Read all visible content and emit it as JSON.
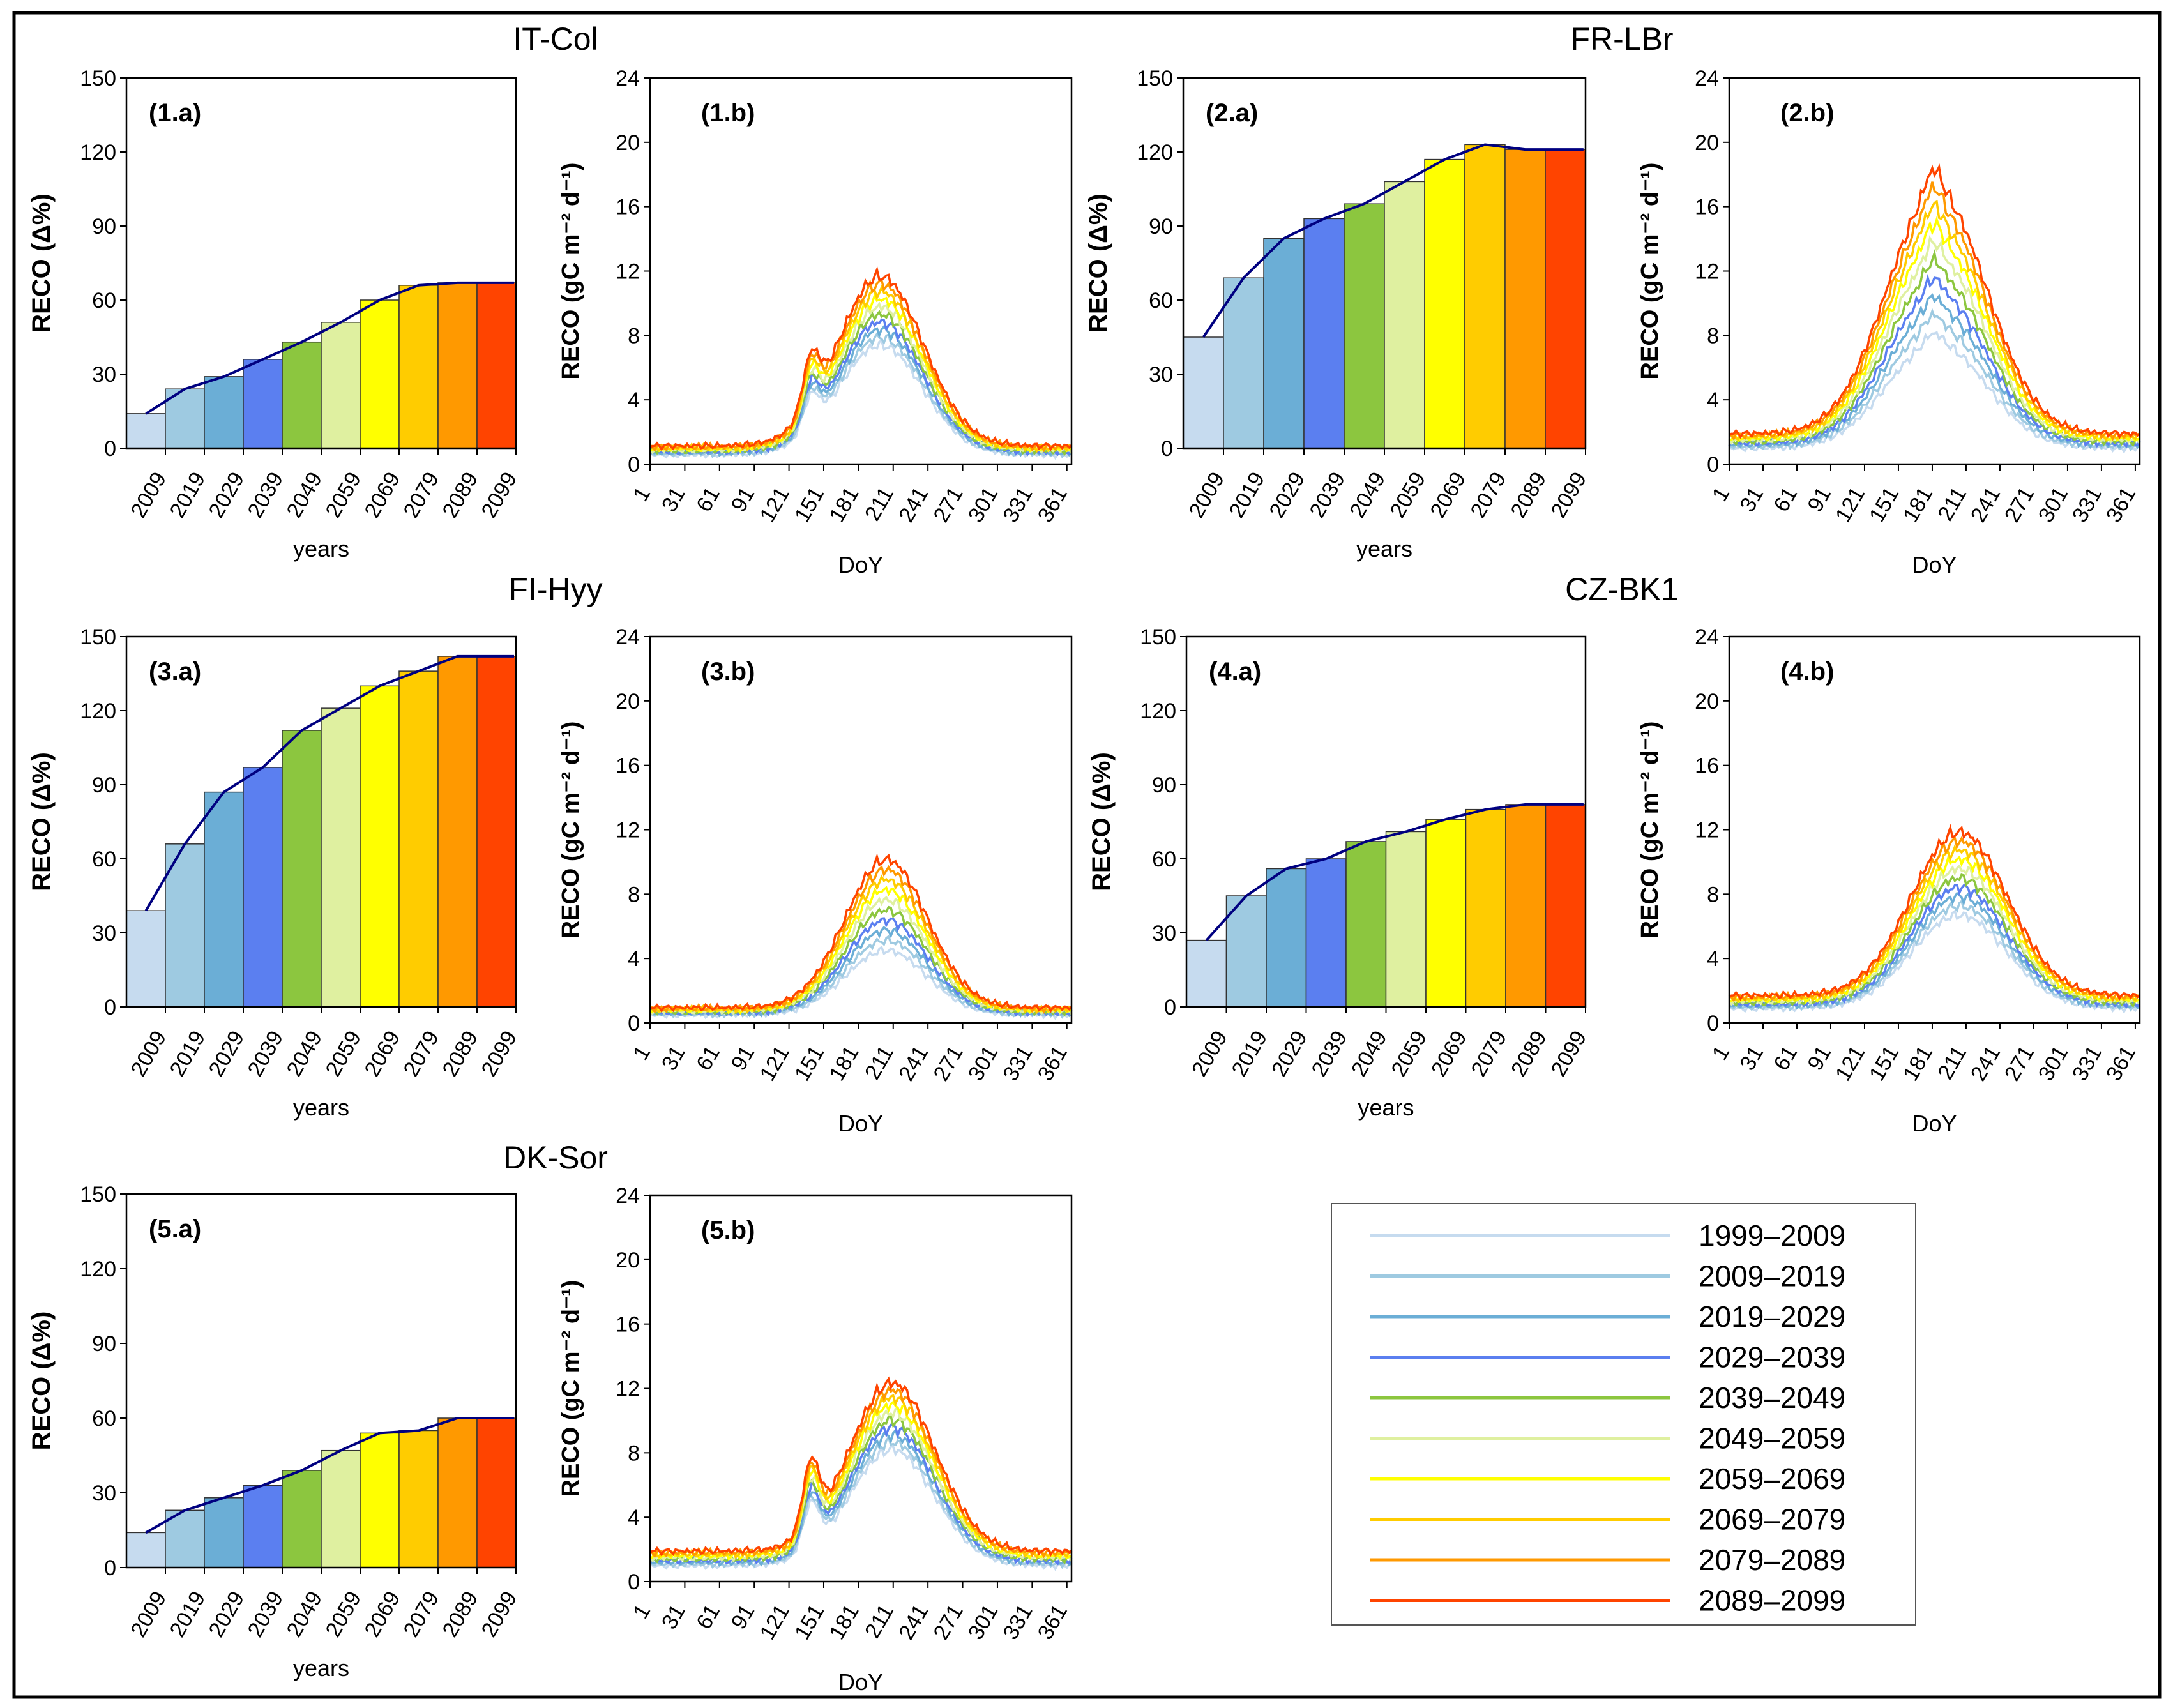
{
  "colors": [
    "#c6dbef",
    "#9ecae1",
    "#6baed6",
    "#5b7ff0",
    "#8cc63f",
    "#dff0a0",
    "#ffff00",
    "#ffcc00",
    "#ff9900",
    "#ff4400"
  ],
  "line_color": "#000080",
  "legend": {
    "entries": [
      "1999–2009",
      "2009–2019",
      "2019–2029",
      "2029–2039",
      "2039–2049",
      "2049–2059",
      "2059–2069",
      "2069–2079",
      "2079–2089",
      "2089–2099"
    ]
  },
  "chart_data": [
    {
      "type": "bar",
      "site": "IT-Col",
      "label": "(1.a)",
      "xlabel": "years",
      "ylabel": "RECO (Δ%)",
      "ylim": [
        0,
        150
      ],
      "yticks": [
        0,
        30,
        60,
        90,
        120,
        150
      ],
      "xtick_labels": [
        "2009",
        "2019",
        "2029",
        "2039",
        "2049",
        "2059",
        "2069",
        "2079",
        "2089",
        "2099"
      ],
      "values": [
        14,
        24,
        29,
        36,
        43,
        51,
        60,
        66,
        67,
        67
      ],
      "trend": [
        14,
        24,
        29,
        36,
        43,
        51,
        60,
        66,
        67,
        67
      ]
    },
    {
      "type": "line",
      "label": "(1.b)",
      "xlabel": "DoY",
      "ylabel": "RECO (gC m⁻² d⁻¹)",
      "ylim": [
        0,
        24
      ],
      "yticks": [
        0,
        4,
        8,
        12,
        16,
        20,
        24
      ],
      "xtick_labels": [
        "1",
        "31",
        "61",
        "91",
        "121",
        "151",
        "181",
        "211",
        "241",
        "271",
        "301",
        "331",
        "361"
      ],
      "profile": {
        "base": 0.6,
        "peak": 6.8,
        "peak_day": 200,
        "width": 52,
        "spike_day": 140,
        "spike": 2.5,
        "amp_min": 1.0,
        "amp_max": 1.55
      }
    },
    {
      "type": "bar",
      "site": "FR-LBr",
      "label": "(2.a)",
      "xlabel": "years",
      "ylabel": "RECO (Δ%)",
      "ylim": [
        0,
        150
      ],
      "yticks": [
        0,
        30,
        60,
        90,
        120,
        150
      ],
      "xtick_labels": [
        "2009",
        "2019",
        "2029",
        "2039",
        "2049",
        "2059",
        "2069",
        "2079",
        "2089",
        "2099"
      ],
      "values": [
        45,
        69,
        85,
        93,
        99,
        108,
        117,
        123,
        121,
        121
      ],
      "trend": [
        45,
        69,
        85,
        93,
        99,
        108,
        117,
        123,
        121,
        121
      ]
    },
    {
      "type": "line",
      "label": "(2.b)",
      "xlabel": "DoY",
      "ylabel": "RECO (gC m⁻² d⁻¹)",
      "ylim": [
        0,
        24
      ],
      "yticks": [
        0,
        4,
        8,
        12,
        16,
        20,
        24
      ],
      "xtick_labels": [
        "1",
        "31",
        "61",
        "91",
        "121",
        "151",
        "181",
        "211",
        "241",
        "271",
        "301",
        "331",
        "361"
      ],
      "profile": {
        "base": 1.0,
        "peak": 6.5,
        "peak_day": 185,
        "width": 62,
        "spike_day": 182,
        "spike": 0.8,
        "amp_min": 1.0,
        "amp_max": 2.3
      }
    },
    {
      "type": "bar",
      "site": "FI-Hyy",
      "label": "(3.a)",
      "xlabel": "years",
      "ylabel": "RECO (Δ%)",
      "ylim": [
        0,
        150
      ],
      "yticks": [
        0,
        30,
        60,
        90,
        120,
        150
      ],
      "xtick_labels": [
        "2009",
        "2019",
        "2029",
        "2039",
        "2049",
        "2059",
        "2069",
        "2079",
        "2089",
        "2099"
      ],
      "values": [
        39,
        66,
        87,
        97,
        112,
        121,
        130,
        136,
        142,
        142
      ],
      "trend": [
        39,
        66,
        87,
        97,
        112,
        121,
        130,
        136,
        142,
        142
      ]
    },
    {
      "type": "line",
      "label": "(3.b)",
      "xlabel": "DoY",
      "ylabel": "RECO (gC m⁻² d⁻¹)",
      "ylim": [
        0,
        24
      ],
      "yticks": [
        0,
        4,
        8,
        12,
        16,
        20,
        24
      ],
      "xtick_labels": [
        "1",
        "31",
        "61",
        "91",
        "121",
        "151",
        "181",
        "211",
        "241",
        "271",
        "301",
        "331",
        "361"
      ],
      "profile": {
        "base": 0.5,
        "peak": 4.0,
        "peak_day": 205,
        "width": 50,
        "spike_day": 0,
        "spike": 0,
        "amp_min": 1.0,
        "amp_max": 2.3
      }
    },
    {
      "type": "bar",
      "site": "CZ-BK1",
      "label": "(4.a)",
      "xlabel": "years",
      "ylabel": "RECO (Δ%)",
      "ylim": [
        0,
        150
      ],
      "yticks": [
        0,
        30,
        60,
        90,
        120,
        150
      ],
      "xtick_labels": [
        "2009",
        "2019",
        "2029",
        "2039",
        "2049",
        "2059",
        "2069",
        "2079",
        "2089",
        "2099"
      ],
      "values": [
        27,
        45,
        56,
        60,
        67,
        71,
        76,
        80,
        82,
        82
      ],
      "trend": [
        27,
        45,
        56,
        60,
        67,
        71,
        76,
        80,
        82,
        82
      ]
    },
    {
      "type": "line",
      "label": "(4.b)",
      "xlabel": "DoY",
      "ylabel": "RECO (gC m⁻² d⁻¹)",
      "ylim": [
        0,
        24
      ],
      "yticks": [
        0,
        4,
        8,
        12,
        16,
        20,
        24
      ],
      "xtick_labels": [
        "1",
        "31",
        "61",
        "91",
        "121",
        "151",
        "181",
        "211",
        "241",
        "271",
        "301",
        "331",
        "361"
      ],
      "profile": {
        "base": 0.9,
        "peak": 5.8,
        "peak_day": 205,
        "width": 60,
        "spike_day": 0,
        "spike": 0,
        "amp_min": 1.0,
        "amp_max": 1.75
      }
    },
    {
      "type": "bar",
      "site": "DK-Sor",
      "label": "(5.a)",
      "xlabel": "years",
      "ylabel": "RECO (Δ%)",
      "ylim": [
        0,
        150
      ],
      "yticks": [
        0,
        30,
        60,
        90,
        120,
        150
      ],
      "xtick_labels": [
        "2009",
        "2019",
        "2029",
        "2039",
        "2049",
        "2059",
        "2069",
        "2079",
        "2089",
        "2099"
      ],
      "values": [
        14,
        23,
        28,
        33,
        39,
        47,
        54,
        55,
        60,
        60
      ],
      "trend": [
        14,
        23,
        28,
        33,
        39,
        47,
        54,
        55,
        60,
        60
      ]
    },
    {
      "type": "line",
      "label": "(5.b)",
      "xlabel": "DoY",
      "ylabel": "RECO (gC m⁻² d⁻¹)",
      "ylim": [
        0,
        24
      ],
      "yticks": [
        0,
        4,
        8,
        12,
        16,
        20,
        24
      ],
      "xtick_labels": [
        "1",
        "31",
        "61",
        "91",
        "121",
        "151",
        "181",
        "211",
        "241",
        "271",
        "301",
        "331",
        "361"
      ],
      "profile": {
        "base": 1.0,
        "peak": 7.2,
        "peak_day": 210,
        "width": 52,
        "spike_day": 140,
        "spike": 3.5,
        "amp_min": 1.0,
        "amp_max": 1.45
      }
    }
  ]
}
